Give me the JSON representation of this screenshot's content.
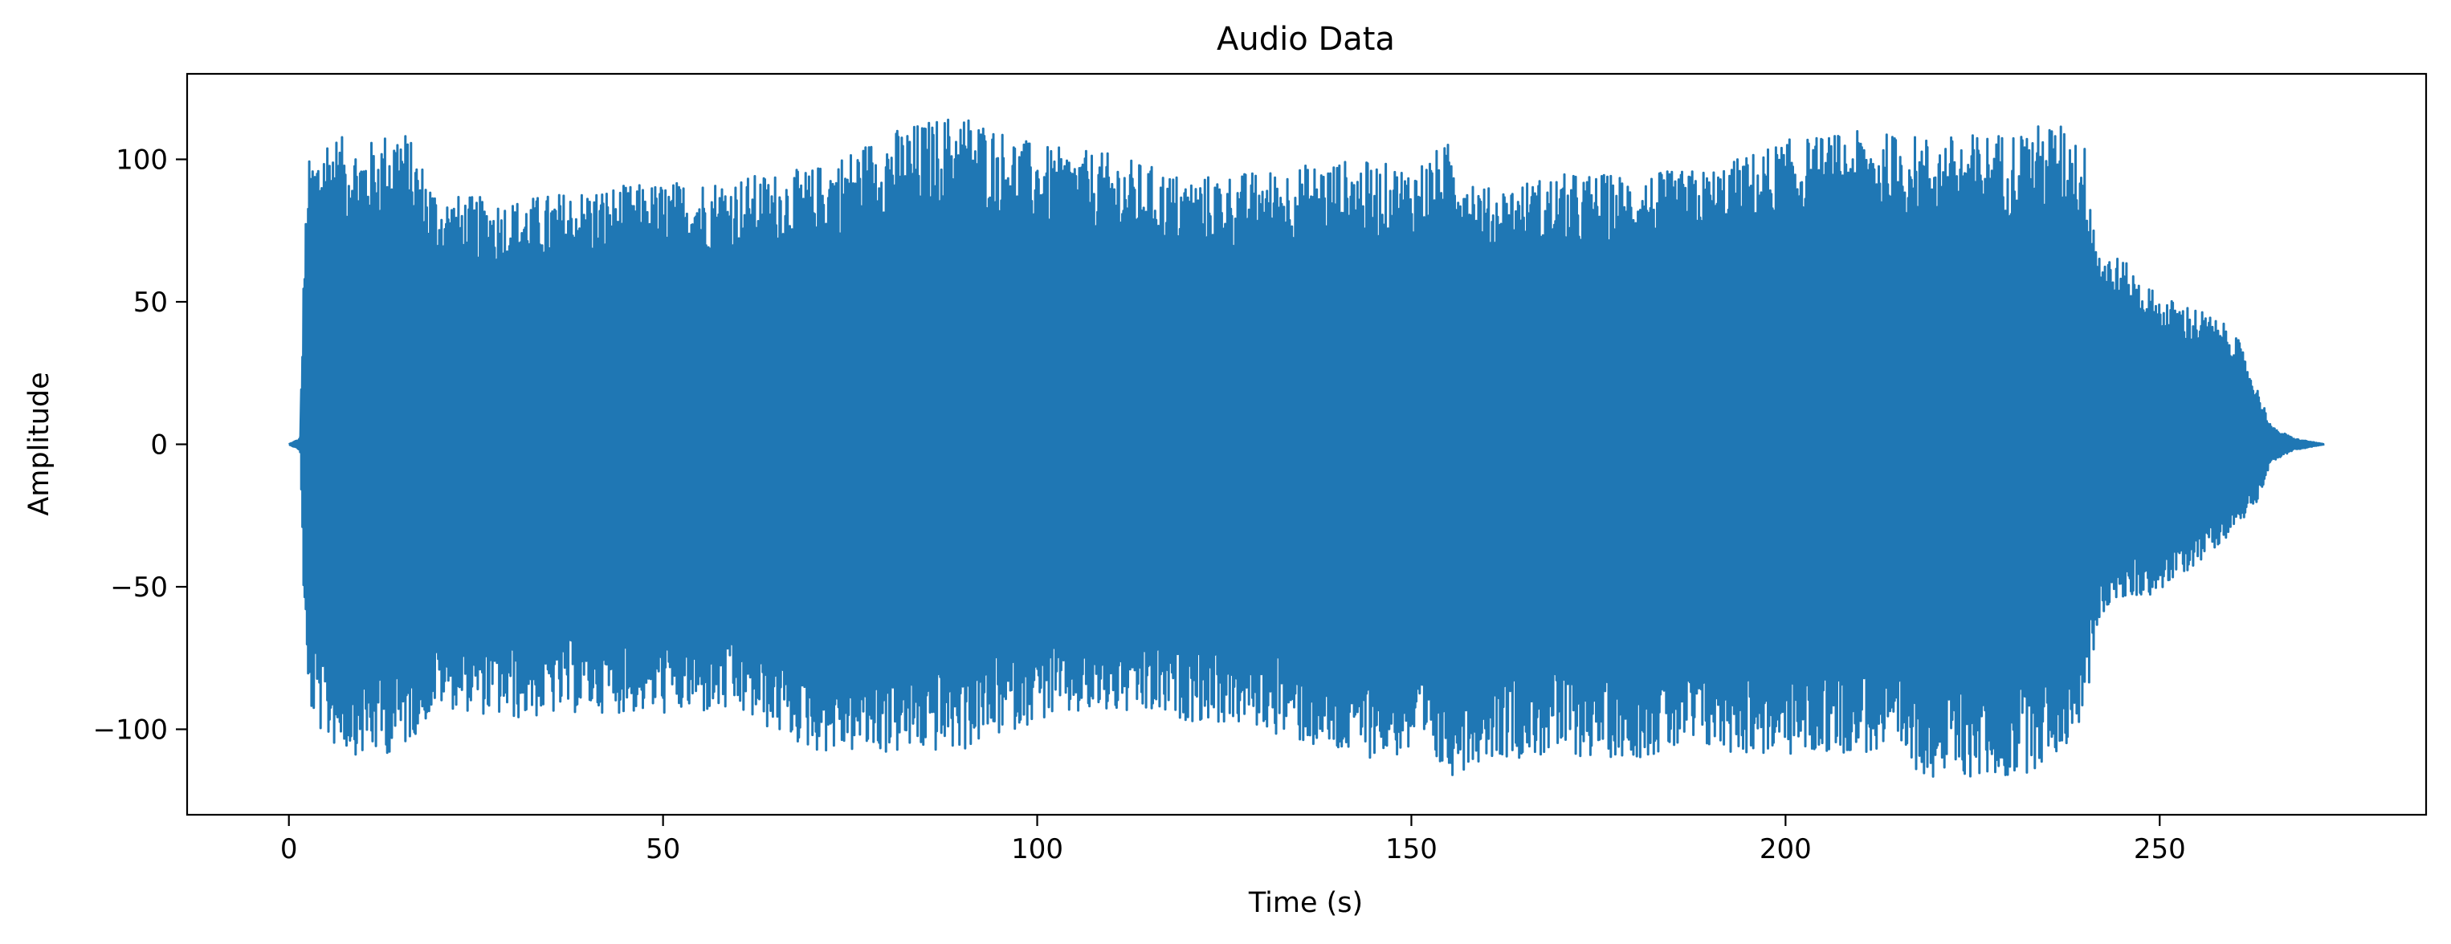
{
  "chart_data": {
    "type": "line",
    "title": "Audio Data",
    "xlabel": "Time (s)",
    "ylabel": "Amplitude",
    "xlim": [
      -13.6,
      285.6
    ],
    "ylim": [
      -130,
      130
    ],
    "xticks": [
      0,
      50,
      100,
      150,
      200,
      250
    ],
    "xtick_labels": [
      "0",
      "50",
      "100",
      "150",
      "200",
      "250"
    ],
    "yticks": [
      -100,
      -50,
      0,
      50,
      100
    ],
    "ytick_labels": [
      "−100",
      "−50",
      "0",
      "50",
      "100"
    ],
    "grid": false,
    "series": [
      {
        "color": "#1f77b4",
        "envelope": {
          "time": [
            0,
            1.5,
            2,
            2.5,
            3,
            5,
            10,
            15,
            20,
            30,
            40,
            50,
            60,
            70,
            80,
            90,
            100,
            110,
            120,
            130,
            140,
            150,
            155,
            160,
            170,
            180,
            190,
            200,
            210,
            220,
            230,
            235,
            238,
            240,
            242,
            245,
            250,
            255,
            260,
            263,
            265,
            268,
            272
          ],
          "max": [
            0,
            2,
            60,
            100,
            100,
            110,
            105,
            113,
            88,
            86,
            90,
            92,
            94,
            97,
            110,
            117,
            105,
            102,
            94,
            96,
            100,
            98,
            106,
            90,
            95,
            95,
            97,
            107,
            110,
            108,
            110,
            113,
            112,
            105,
            70,
            65,
            52,
            48,
            40,
            20,
            6,
            2,
            0
          ],
          "min": [
            0,
            -2,
            -55,
            -93,
            -95,
            -105,
            -110,
            -108,
            -92,
            -97,
            -94,
            -95,
            -95,
            -108,
            -109,
            -108,
            -97,
            -95,
            -97,
            -100,
            -110,
            -110,
            -117,
            -110,
            -110,
            -110,
            -108,
            -110,
            -108,
            -117,
            -118,
            -112,
            -105,
            -95,
            -60,
            -55,
            -52,
            -42,
            -30,
            -20,
            -6,
            -2,
            0
          ]
        }
      }
    ]
  }
}
